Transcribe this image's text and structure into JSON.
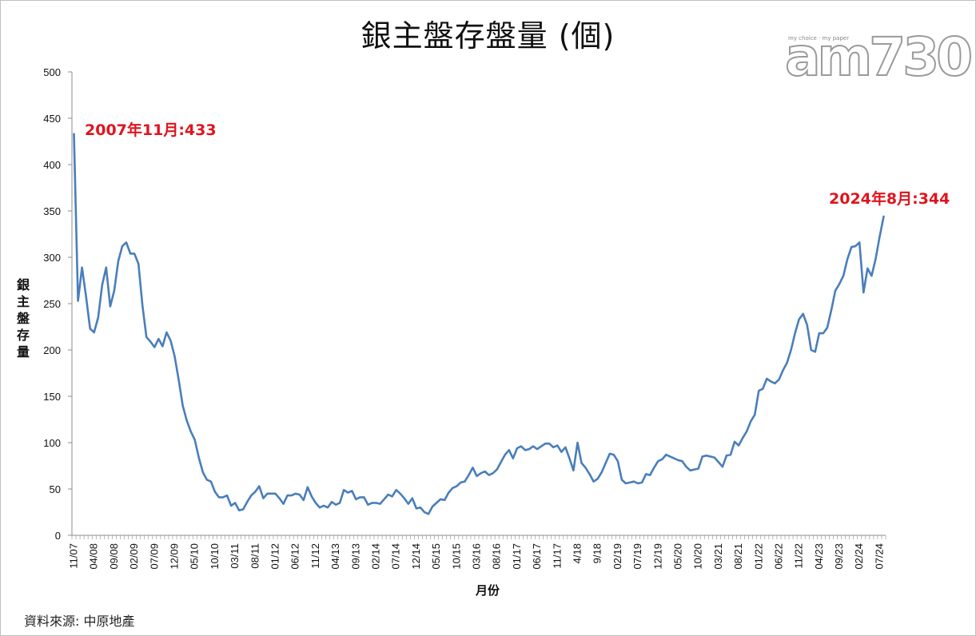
{
  "chart_data": {
    "type": "line",
    "title": "銀主盤存盤量 (個)",
    "ylabel": "銀主盤存量",
    "xlabel": "月份",
    "ylim": [
      0,
      500
    ],
    "yticks": [
      0,
      50,
      100,
      150,
      200,
      250,
      300,
      350,
      400,
      450,
      500
    ],
    "grid": false,
    "legend": "none",
    "line_color": "#4a7ebb",
    "annotation_color": "#e0141e",
    "xtick_labels": [
      "11/07",
      "04/08",
      "09/08",
      "02/09",
      "07/09",
      "12/09",
      "05/10",
      "10/10",
      "03/11",
      "08/11",
      "01/12",
      "06/12",
      "11/12",
      "04/13",
      "09/13",
      "02/14",
      "07/14",
      "12/14",
      "05/15",
      "10/15",
      "03/16",
      "08/16",
      "01/17",
      "06/17",
      "11/17",
      "4/18",
      "9/18",
      "02/19",
      "07/19",
      "12/19",
      "05/20",
      "10/20",
      "03/21",
      "08/21",
      "01/22",
      "06/22",
      "11/22",
      "04/23",
      "09/23",
      "02/24",
      "07/24"
    ],
    "series": [
      {
        "start": "2007-11",
        "values": [
          433,
          253,
          289,
          258,
          223,
          219,
          235,
          270,
          289,
          247,
          264,
          296,
          312,
          316,
          304,
          304,
          293,
          248,
          214,
          209,
          203,
          212,
          204,
          219,
          210,
          193,
          168,
          140,
          124,
          112,
          103,
          84,
          68,
          60,
          58,
          47,
          41,
          41,
          43,
          32,
          35,
          27,
          28,
          36,
          43,
          47,
          53,
          40,
          45,
          45,
          45,
          40,
          34,
          43,
          43,
          45,
          44,
          38,
          52,
          42,
          35,
          30,
          32,
          30,
          36,
          33,
          35,
          49,
          46,
          48,
          39,
          41,
          41,
          33,
          35,
          35,
          34,
          39,
          44,
          42,
          49,
          45,
          40,
          34,
          40,
          29,
          30,
          25,
          23,
          31,
          35,
          39,
          38,
          46,
          51,
          53,
          57,
          58,
          65,
          73,
          64,
          67,
          69,
          65,
          67,
          71,
          79,
          87,
          92,
          83,
          94,
          96,
          92,
          93,
          96,
          93,
          96,
          99,
          99,
          95,
          97,
          90,
          95,
          83,
          70,
          100,
          78,
          73,
          66,
          58,
          61,
          68,
          78,
          88,
          87,
          80,
          60,
          56,
          57,
          58,
          56,
          57,
          66,
          65,
          73,
          80,
          82,
          87,
          85,
          83,
          81,
          80,
          74,
          70,
          71,
          72,
          85,
          86,
          85,
          84,
          79,
          74,
          86,
          87,
          101,
          97,
          105,
          112,
          123,
          130,
          156,
          158,
          169,
          166,
          164,
          168,
          178,
          186,
          200,
          218,
          233,
          239,
          227,
          200,
          198,
          218,
          218,
          224,
          243,
          264,
          271,
          280,
          298,
          311,
          312,
          316,
          262,
          288,
          280,
          298,
          322,
          344
        ]
      }
    ],
    "annotations": [
      {
        "label": "2007年11月:433"
      },
      {
        "label": "2024年8月:344"
      }
    ]
  },
  "source_text": "資料來源: 中原地產",
  "logo": {
    "text": "am730",
    "tagline": "my choice · my paper"
  }
}
